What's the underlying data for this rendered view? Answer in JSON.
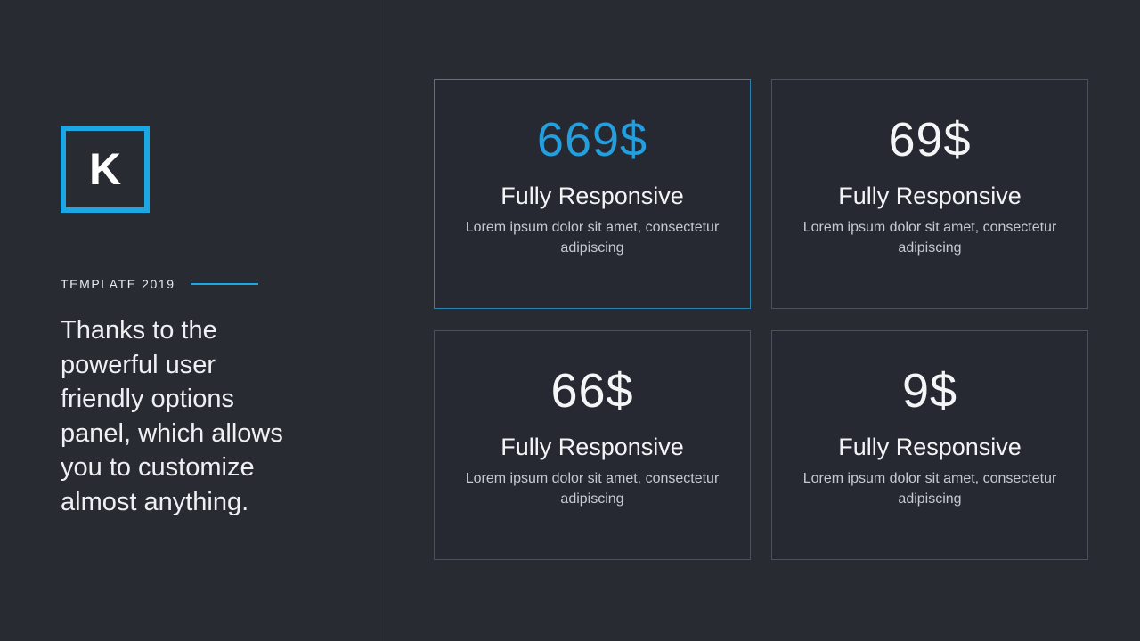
{
  "left_panel": {
    "logo_letter": "K",
    "kicker": "TEMPLATE 2019",
    "paragraph": "Thanks to the powerful user friendly options panel, which allows you to customize almost anything."
  },
  "cards": [
    {
      "price": "669$",
      "title": "Fully Responsive",
      "description": "Lorem ipsum dolor sit amet, consectetur adipiscing",
      "highlighted": true
    },
    {
      "price": "69$",
      "title": "Fully Responsive",
      "description": "Lorem ipsum dolor sit amet, consectetur adipiscing",
      "highlighted": false
    },
    {
      "price": "66$",
      "title": "Fully Responsive",
      "description": "Lorem ipsum dolor sit amet, consectetur adipiscing",
      "highlighted": false
    },
    {
      "price": "9$",
      "title": "Fully Responsive",
      "description": "Lorem ipsum dolor sit amet, consectetur adipiscing",
      "highlighted": false
    }
  ],
  "colors": {
    "background": "#282B32",
    "card_background": "#262931",
    "accent_blue": "#1CA6E3",
    "price_highlight_blue": "#249EDC",
    "card_border": "#4C505E",
    "card_border_highlight": "#2E81AC",
    "divider": "#4B4E59",
    "body_text": "#EEF0F3",
    "muted_text": "#C6CAD0"
  }
}
